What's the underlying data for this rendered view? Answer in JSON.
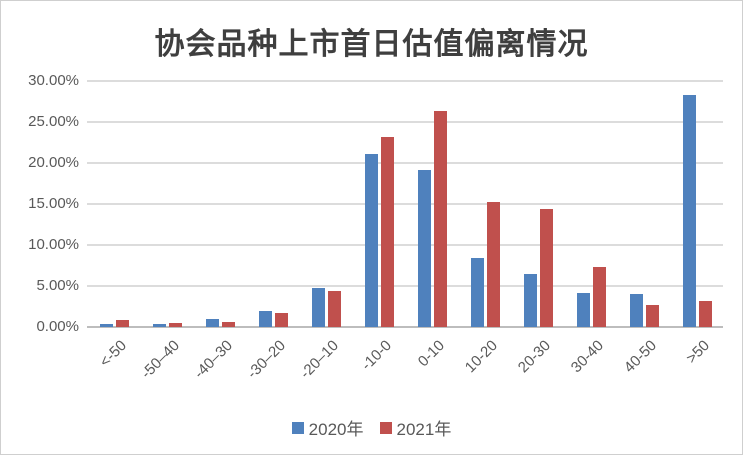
{
  "title": "协会品种上市首日估值偏离情况",
  "colors": {
    "series_2020": "#4F81BD",
    "series_2021": "#C0504D",
    "gridline": "#dcdcdc",
    "axis_line": "#bdbdbd",
    "tick_text": "#595959",
    "title_text": "#3f3f3f",
    "border": "#cfcfcf"
  },
  "chart_data": {
    "type": "bar",
    "title": "协会品种上市首日估值偏离情况",
    "categories": [
      "<-50",
      "-50–40",
      "-40–30",
      "-30–20",
      "-20–10",
      "-10-0",
      "0-10",
      "10-20",
      "20-30",
      "30-40",
      "40-50",
      ">50"
    ],
    "series": [
      {
        "name": "2020年",
        "color": "#4F81BD",
        "values": [
          0.4,
          0.4,
          1.0,
          1.9,
          4.8,
          21.1,
          19.1,
          8.4,
          6.5,
          4.2,
          4.0,
          28.3
        ]
      },
      {
        "name": "2021年",
        "color": "#C0504D",
        "values": [
          0.8,
          0.5,
          0.6,
          1.7,
          4.4,
          23.2,
          26.3,
          15.2,
          14.4,
          7.3,
          2.7,
          3.2
        ]
      }
    ],
    "xlabel": "",
    "ylabel": "",
    "ylim": [
      0,
      30
    ],
    "ytick_labels": [
      "0.00%",
      "5.00%",
      "10.00%",
      "15.00%",
      "20.00%",
      "25.00%",
      "30.00%"
    ],
    "grid": true,
    "legend_position": "bottom"
  },
  "legend": {
    "items": [
      {
        "label": "2020年",
        "color": "#4F81BD"
      },
      {
        "label": "2021年",
        "color": "#C0504D"
      }
    ]
  }
}
